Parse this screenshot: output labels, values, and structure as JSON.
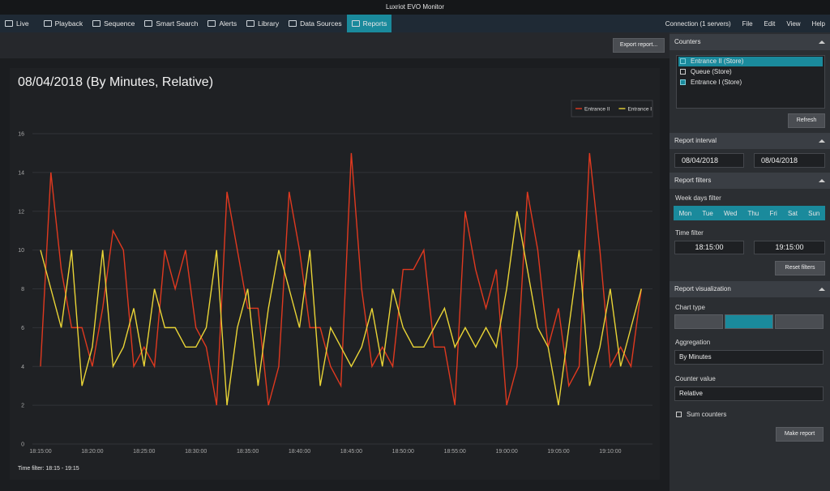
{
  "window": {
    "title": "Luxriot EVO Monitor"
  },
  "nav": {
    "tabs": [
      "Live",
      "Playback",
      "Sequence",
      "Smart Search",
      "Alerts",
      "Library",
      "Data Sources",
      "Reports"
    ],
    "connection": "Connection (1 servers)",
    "menu": [
      "File",
      "Edit",
      "View",
      "Help"
    ]
  },
  "toolbar": {
    "export_button": "Export report..."
  },
  "chart_data": {
    "type": "line",
    "title": "08/04/2018 (By Minutes, Relative)",
    "footnote": "Time filter: 18:15 - 19:15",
    "categories": [
      "18:15:00",
      null,
      null,
      null,
      null,
      "18:20:00",
      null,
      null,
      null,
      null,
      "18:25:00",
      null,
      null,
      null,
      null,
      "18:30:00",
      null,
      null,
      null,
      null,
      "18:35:00",
      null,
      null,
      null,
      null,
      "18:40:00",
      null,
      null,
      null,
      null,
      "18:45:00",
      null,
      null,
      null,
      null,
      "18:50:00",
      null,
      null,
      null,
      null,
      "18:55:00",
      null,
      null,
      null,
      null,
      "19:00:00",
      null,
      null,
      null,
      null,
      "19:05:00",
      null,
      null,
      null,
      null,
      "19:10:00",
      null,
      null,
      null
    ],
    "series": [
      {
        "name": "Entrance II",
        "color": "#e0391f",
        "values": [
          4,
          14,
          9,
          6,
          6,
          4,
          7,
          11,
          10,
          4,
          5,
          4,
          10,
          8,
          10,
          6,
          5,
          2,
          13,
          10,
          7,
          7,
          2,
          4,
          13,
          10,
          6,
          6,
          4,
          3,
          15,
          8,
          4,
          5,
          4,
          9,
          9,
          10,
          5,
          5,
          2,
          12,
          9,
          7,
          9,
          2,
          4,
          13,
          10,
          5,
          7,
          3,
          4,
          15,
          10,
          4,
          5,
          4,
          8
        ]
      },
      {
        "name": "Entrance I",
        "color": "#e9d436",
        "values": [
          10,
          8,
          6,
          10,
          3,
          5,
          10,
          4,
          5,
          7,
          4,
          8,
          6,
          6,
          5,
          5,
          6,
          10,
          2,
          6,
          8,
          3,
          7,
          10,
          8,
          6,
          10,
          3,
          6,
          5,
          4,
          5,
          7,
          4,
          8,
          6,
          5,
          5,
          6,
          7,
          5,
          6,
          5,
          6,
          5,
          8,
          12,
          9,
          6,
          5,
          2,
          6,
          10,
          3,
          5,
          8,
          4,
          6,
          8
        ]
      }
    ],
    "ylim": [
      0,
      16
    ],
    "yticks": [
      0,
      2,
      4,
      6,
      8,
      10,
      12,
      14,
      16
    ],
    "grid": true,
    "legend": "top-right"
  },
  "side_panel": {
    "counters": {
      "title": "Counters",
      "items": [
        "Entrance II (Store)",
        "Queue (Store)",
        "Entrance I (Store)"
      ],
      "refresh": "Refresh"
    },
    "interval": {
      "title": "Report interval",
      "from": "08/04/2018",
      "to": "08/04/2018"
    },
    "filters": {
      "title": "Report filters",
      "week_label": "Week days filter",
      "days": [
        "Mon",
        "Tue",
        "Wed",
        "Thu",
        "Fri",
        "Sat",
        "Sun"
      ],
      "time_label": "Time filter",
      "time_from": "18:15:00",
      "time_to": "19:15:00",
      "reset": "Reset filters"
    },
    "visualization": {
      "title": "Report visualization",
      "chart_type_label": "Chart type",
      "aggregation_label": "Aggregation",
      "aggregation": "By Minutes",
      "counter_value_label": "Counter value",
      "counter_value": "Relative",
      "sum_counters": "Sum counters",
      "make_report": "Make report"
    }
  }
}
